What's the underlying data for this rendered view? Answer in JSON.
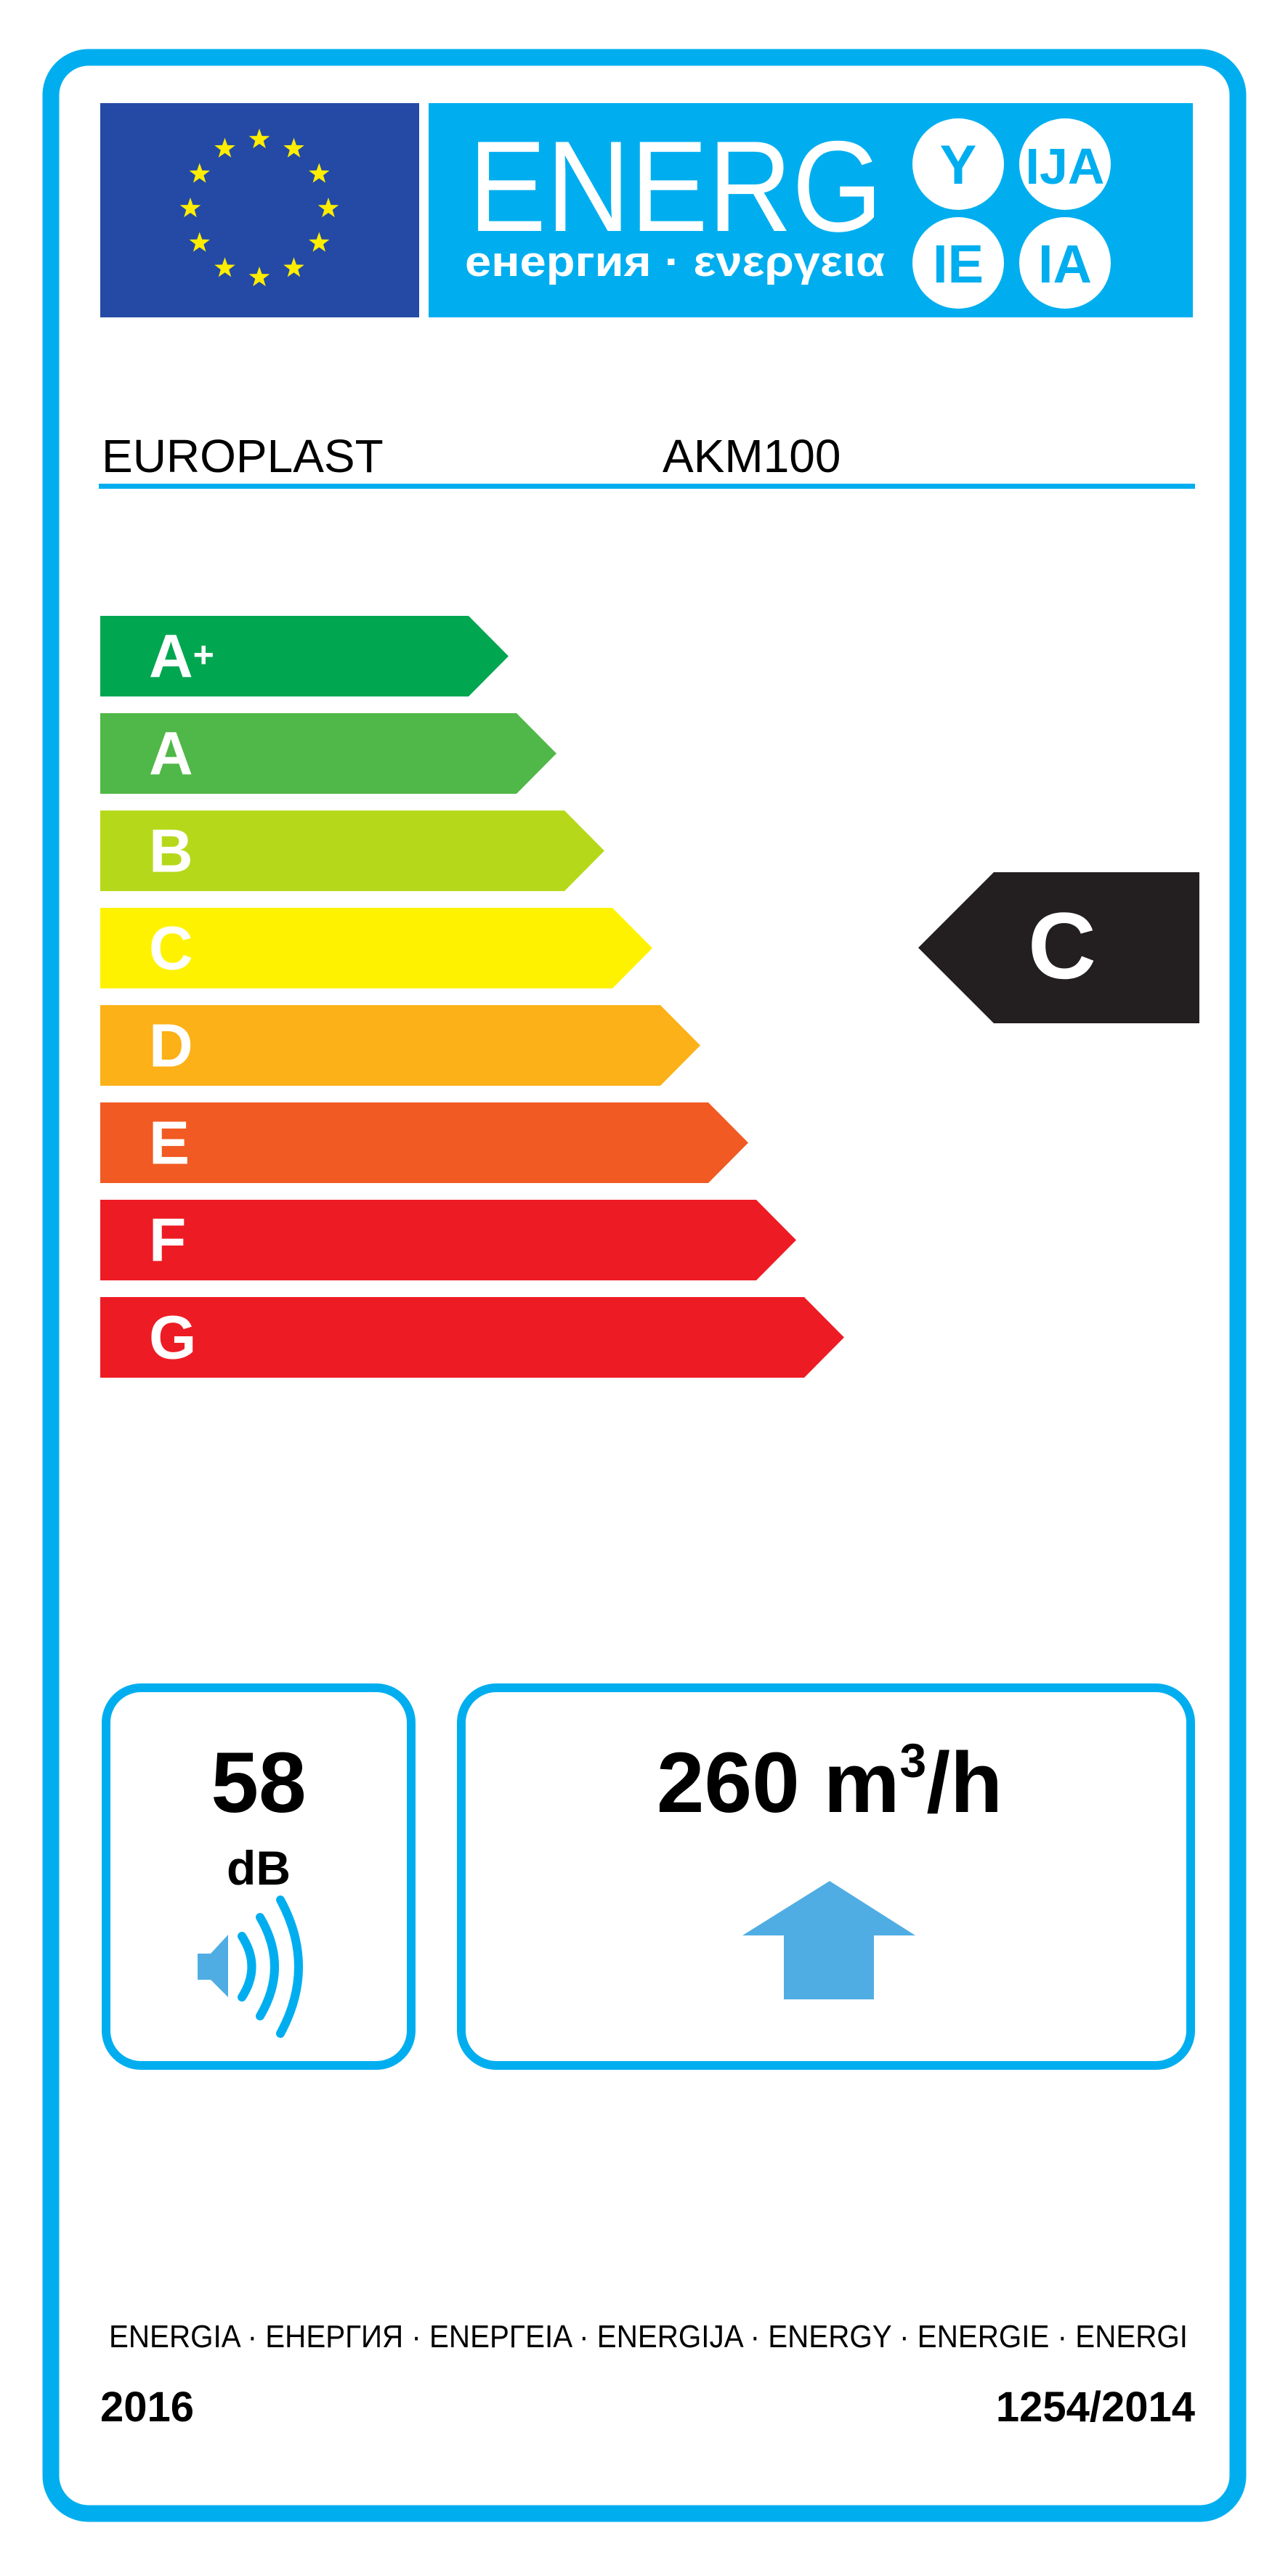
{
  "header": {
    "logo_word": "ENERG",
    "logo_subtitle": "енергия · ενεργεια",
    "logo_suffixes": [
      "Y",
      "IJA",
      "IE",
      "IA"
    ]
  },
  "product": {
    "supplier": "EUROPLAST",
    "model": "AKM100"
  },
  "scale": {
    "classes": [
      {
        "label": "A",
        "suffix": "+",
        "color": "#00a650"
      },
      {
        "label": "A",
        "suffix": "",
        "color": "#50b848"
      },
      {
        "label": "B",
        "suffix": "",
        "color": "#b5d91a"
      },
      {
        "label": "C",
        "suffix": "",
        "color": "#fff200"
      },
      {
        "label": "D",
        "suffix": "",
        "color": "#fbb117"
      },
      {
        "label": "E",
        "suffix": "",
        "color": "#f15a22"
      },
      {
        "label": "F",
        "suffix": "",
        "color": "#ed1c24"
      },
      {
        "label": "G",
        "suffix": "",
        "color": "#ed1c24"
      }
    ],
    "rating": "C",
    "rating_index": 3
  },
  "noise": {
    "value": "58",
    "unit": "dB",
    "icon": "speaker-icon"
  },
  "airflow": {
    "value": "260",
    "unit_base": "m",
    "unit_sup": "3",
    "unit_rest": "/h",
    "icon": "arrow-up-icon"
  },
  "footer": {
    "languages": "ENERGIA · ЕНЕРГИЯ · ΕΝΕΡΓΕΙΑ · ENERGIJA · ENERGY · ENERGIE · ENERGI",
    "year": "2016",
    "regulation": "1254/2014"
  },
  "colors": {
    "border": "#00aeef",
    "eu_blue": "#244aa5",
    "star": "#ffed00",
    "arrow": "#4fade3"
  }
}
